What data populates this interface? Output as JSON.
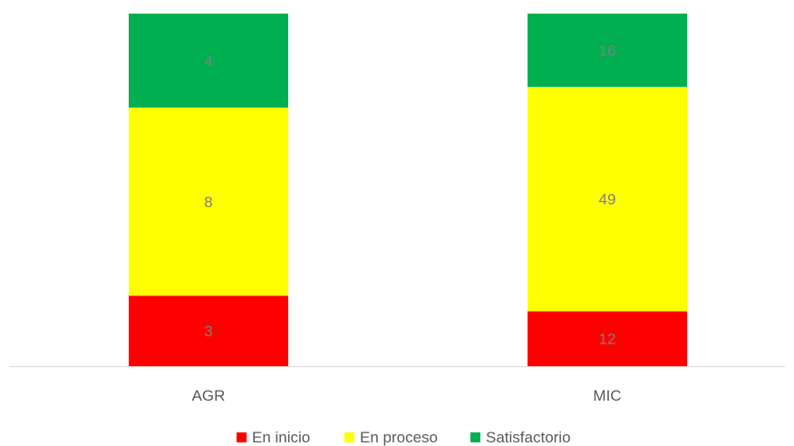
{
  "chart_data": {
    "type": "bar",
    "stacked": true,
    "normalized": true,
    "categories": [
      "AGR",
      "MIC"
    ],
    "series": [
      {
        "name": "En inicio",
        "values": [
          3,
          12
        ],
        "color": "#ff0000"
      },
      {
        "name": "En proceso",
        "values": [
          8,
          49
        ],
        "color": "#ffff00"
      },
      {
        "name": "Satisfactorio",
        "values": [
          4,
          16
        ],
        "color": "#00b050"
      }
    ],
    "legend_position": "bottom",
    "grid": false,
    "title": "",
    "xlabel": "",
    "ylabel": ""
  }
}
